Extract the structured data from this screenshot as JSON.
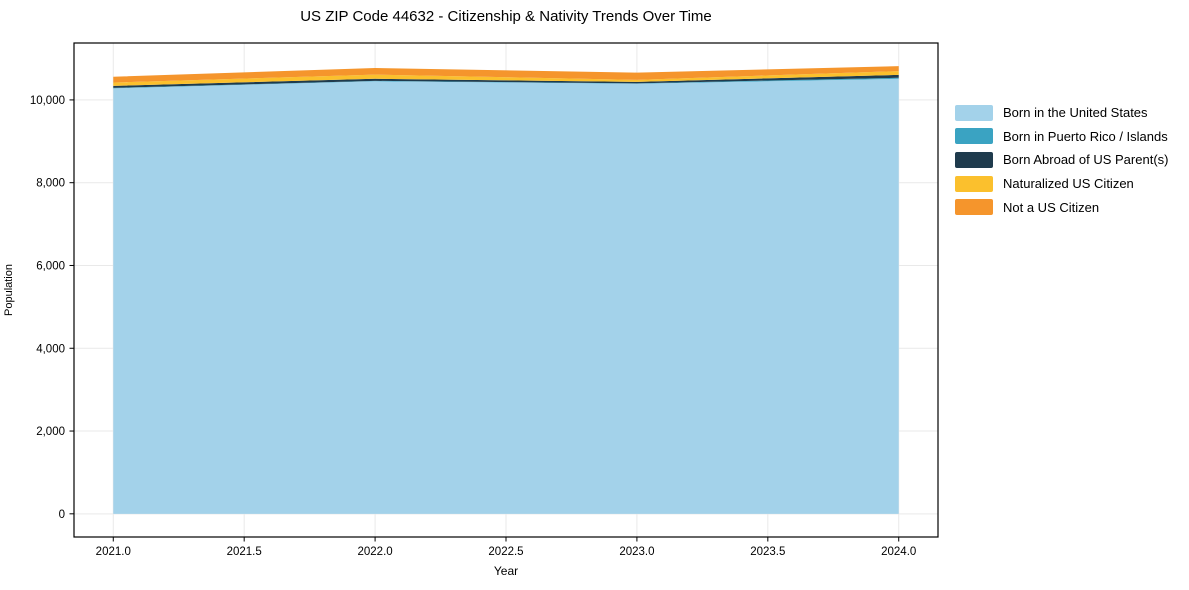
{
  "chart_data": {
    "type": "area",
    "stacked": true,
    "title": "US ZIP Code 44632 - Citizenship & Nativity Trends Over Time",
    "xlabel": "Year",
    "ylabel": "Population",
    "x": [
      2021,
      2022,
      2023,
      2024
    ],
    "series": [
      {
        "name": "Born in the United States",
        "color": "#A3D2EA",
        "values": [
          10280,
          10450,
          10390,
          10510
        ]
      },
      {
        "name": "Born in Puerto Rico / Islands",
        "color": "#3AA3C2",
        "values": [
          10,
          10,
          10,
          25
        ]
      },
      {
        "name": "Born Abroad of US Parent(s)",
        "color": "#1F3B4D",
        "values": [
          50,
          50,
          35,
          70
        ]
      },
      {
        "name": "Naturalized US Citizen",
        "color": "#FBC02D",
        "values": [
          80,
          100,
          50,
          90
        ]
      },
      {
        "name": "Not a US Citizen",
        "color": "#F5952C",
        "values": [
          140,
          160,
          175,
          120
        ]
      }
    ],
    "xticks": {
      "values": [
        2021.0,
        2021.5,
        2022.0,
        2022.5,
        2023.0,
        2023.5,
        2024.0
      ],
      "labels": [
        "2021.0",
        "2021.5",
        "2022.0",
        "2022.5",
        "2023.0",
        "2023.5",
        "2024.0"
      ]
    },
    "yticks": {
      "values": [
        0,
        2000,
        4000,
        6000,
        8000,
        10000
      ],
      "labels": [
        "0",
        "2,000",
        "4,000",
        "6,000",
        "8,000",
        "10,000"
      ]
    },
    "xlim": [
      2020.85,
      2024.15
    ],
    "ylim": [
      -560,
      11375
    ],
    "grid": true,
    "grid_color": "#E9E9E9",
    "spine_color": "#000000",
    "tick_color": "#000000",
    "background": "#FFFFFF",
    "legend_position": "right-outside"
  }
}
